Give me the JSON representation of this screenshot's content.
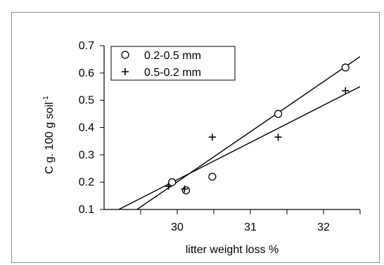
{
  "chart_data": {
    "type": "scatter",
    "title": "",
    "xlabel": "litter weight loss %",
    "ylabel_main": "C g. 100 g soil",
    "ylabel_sup": "-1",
    "xlim": [
      29.0,
      32.5
    ],
    "ylim": [
      0.1,
      0.7
    ],
    "x_ticks": [
      30,
      31,
      32
    ],
    "x_tick_labels": [
      "30",
      "31",
      "32"
    ],
    "y_ticks": [
      0.1,
      0.2,
      0.3,
      0.4,
      0.5,
      0.6,
      0.7
    ],
    "y_tick_labels": [
      "0.1",
      "0.2",
      "0.3",
      "0.4",
      "0.5",
      "0.6",
      "0.7"
    ],
    "grid": false,
    "legend_position": "top-left",
    "series": [
      {
        "name": "0.2-0.5 mm",
        "marker": "circle",
        "points": [
          {
            "x": 29.93,
            "y": 0.2
          },
          {
            "x": 30.12,
            "y": 0.17
          },
          {
            "x": 30.48,
            "y": 0.22
          },
          {
            "x": 31.38,
            "y": 0.45
          },
          {
            "x": 32.3,
            "y": 0.62
          }
        ],
        "trendline": {
          "x": [
            29.45,
            32.5
          ],
          "y": [
            0.1,
            0.66
          ]
        }
      },
      {
        "name": "0.5-0.2  mm",
        "marker": "plus",
        "points": [
          {
            "x": 29.88,
            "y": 0.185
          },
          {
            "x": 30.1,
            "y": 0.175
          },
          {
            "x": 30.48,
            "y": 0.365
          },
          {
            "x": 31.38,
            "y": 0.365
          },
          {
            "x": 32.3,
            "y": 0.535
          }
        ],
        "trendline": {
          "x": [
            29.2,
            32.5
          ],
          "y": [
            0.1,
            0.55
          ]
        }
      }
    ]
  },
  "colors": {
    "ink": "#000000",
    "frame": "#8c8c8c",
    "background": "#ffffff"
  }
}
